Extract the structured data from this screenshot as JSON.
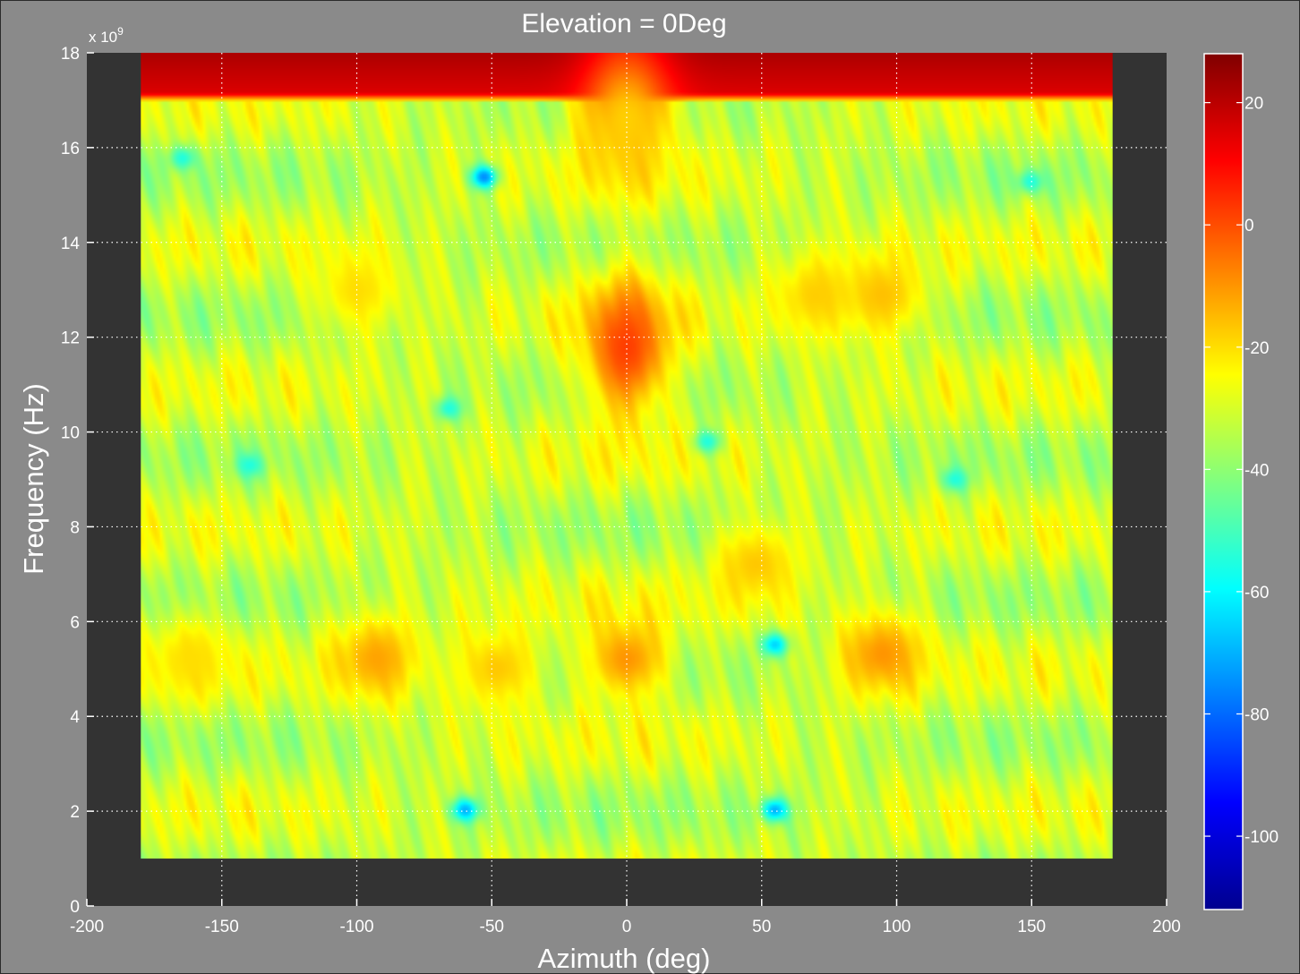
{
  "chart_data": {
    "type": "heatmap",
    "title": "Elevation = 0Deg",
    "xlabel": "Azimuth (deg)",
    "ylabel": "Frequency (Hz)",
    "y_multiplier_label": "x 10",
    "y_multiplier_exponent": "9",
    "xlim": [
      -200,
      200
    ],
    "ylim": [
      0,
      18
    ],
    "data_x_range": [
      -180,
      180
    ],
    "data_y_range": [
      1,
      18
    ],
    "x_ticks": [
      "-200",
      "-150",
      "-100",
      "-50",
      "0",
      "50",
      "100",
      "150",
      "200"
    ],
    "x_tick_values": [
      -200,
      -150,
      -100,
      -50,
      0,
      50,
      100,
      150,
      200
    ],
    "y_ticks": [
      "0",
      "2",
      "4",
      "6",
      "8",
      "10",
      "12",
      "14",
      "16",
      "18"
    ],
    "y_tick_values": [
      0,
      2,
      4,
      6,
      8,
      10,
      12,
      14,
      16,
      18
    ],
    "grid": true,
    "background_level": -32,
    "colorbar": {
      "range": [
        -112,
        28
      ],
      "ticks": [
        "20",
        "0",
        "-20",
        "-40",
        "-60",
        "-80",
        "-100"
      ],
      "tick_values": [
        20,
        0,
        -20,
        -40,
        -60,
        -80,
        -100
      ],
      "colormap": "jet"
    },
    "features": [
      {
        "az": -1,
        "freq": 17.6,
        "level": 18
      },
      {
        "az": 0,
        "freq": 11.8,
        "level": 2
      },
      {
        "az": 0,
        "freq": 5.2,
        "level": -10
      },
      {
        "az": -93,
        "freq": 5.2,
        "level": -12
      },
      {
        "az": -48,
        "freq": 5.0,
        "level": -17
      },
      {
        "az": 48,
        "freq": 7.2,
        "level": -17
      },
      {
        "az": 95,
        "freq": 5.3,
        "level": -10
      },
      {
        "az": 0,
        "freq": 16.6,
        "level": -18
      },
      {
        "az": 70,
        "freq": 12.9,
        "level": -18
      },
      {
        "az": 95,
        "freq": 12.9,
        "level": -16
      },
      {
        "az": -100,
        "freq": 13.0,
        "level": -20
      },
      {
        "az": -162,
        "freq": 5.2,
        "level": -20
      },
      {
        "az": -140,
        "freq": 9.3,
        "level": -55
      },
      {
        "az": -66,
        "freq": 10.5,
        "level": -55
      },
      {
        "az": 30,
        "freq": 9.8,
        "level": -55
      },
      {
        "az": 122,
        "freq": 9.0,
        "level": -55
      },
      {
        "az": -53,
        "freq": 15.4,
        "level": -75
      },
      {
        "az": 55,
        "freq": 5.5,
        "level": -65
      },
      {
        "az": -60,
        "freq": 2.0,
        "level": -70
      },
      {
        "az": 55,
        "freq": 2.0,
        "level": -70
      },
      {
        "az": -165,
        "freq": 15.8,
        "level": -55
      },
      {
        "az": 150,
        "freq": 15.3,
        "level": -55
      }
    ]
  }
}
